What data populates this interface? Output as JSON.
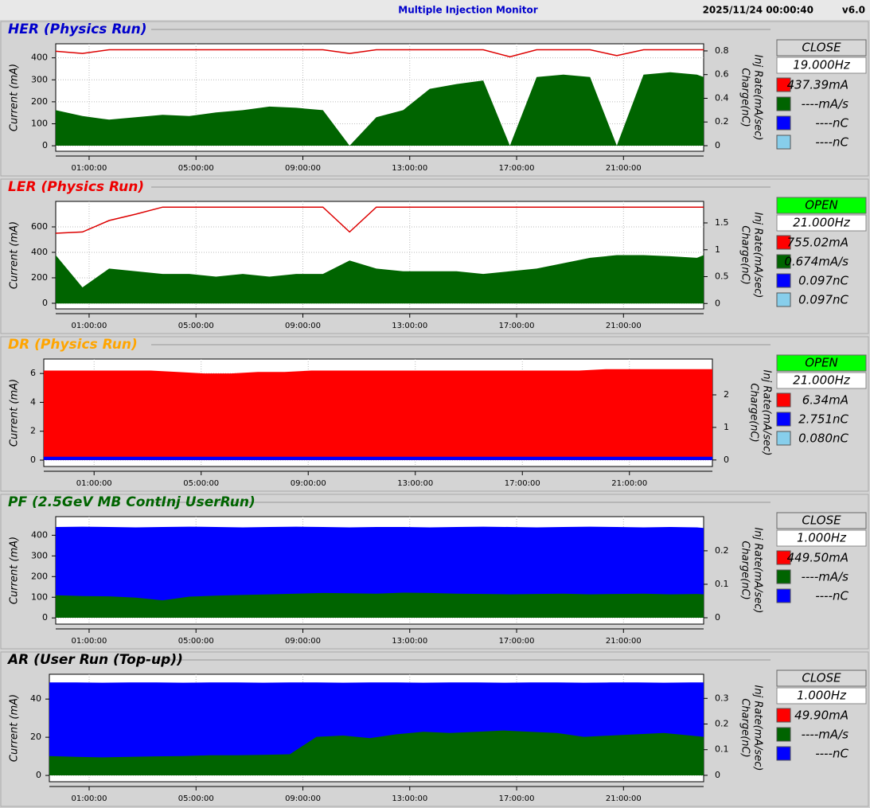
{
  "header": {
    "title": "Multiple Injection Monitor",
    "timestamp": "2025/11/24 00:00:40",
    "version": "v6.0"
  },
  "chart_data": [
    {
      "type": "area",
      "title": "HER",
      "subtitle": "(Physics Run)",
      "title_color": "#0000cc",
      "ylabel": "Current (mA)",
      "y2labels": [
        "Charge(nC)",
        "Inj Rate(mA/sec)"
      ],
      "xlim": [
        -0.25,
        24.0
      ],
      "xticks": [
        {
          "value": 1,
          "label": "01:00:00"
        },
        {
          "value": 5,
          "label": "05:00:00"
        },
        {
          "value": 9,
          "label": "09:00:00"
        },
        {
          "value": 13,
          "label": "13:00:00"
        },
        {
          "value": 17,
          "label": "17:00:00"
        },
        {
          "value": 21,
          "label": "21:00:00"
        }
      ],
      "ylim": [
        -25,
        464
      ],
      "yticks": [
        0,
        100,
        200,
        300,
        400
      ],
      "y2lim": [
        -0.047,
        0.86
      ],
      "y2ticks": [
        0,
        0.2,
        0.4,
        0.6,
        0.8
      ],
      "grid": true,
      "x": [
        -0.25,
        0.75,
        1.75,
        2.75,
        3.75,
        4.75,
        5.75,
        6.75,
        7.75,
        8.75,
        9.75,
        10.75,
        11.75,
        12.75,
        13.75,
        14.75,
        15.75,
        16.75,
        17.75,
        18.75,
        19.75,
        20.75,
        21.75,
        22.75,
        23.75,
        24.0
      ],
      "series": [
        {
          "style": "area",
          "color": "#006400",
          "axis": "y2",
          "values": [
            0.3,
            0.25,
            0.22,
            0.24,
            0.26,
            0.25,
            0.28,
            0.3,
            0.33,
            0.32,
            0.3,
            0.0,
            0.24,
            0.3,
            0.48,
            0.52,
            0.55,
            0.0,
            0.58,
            0.6,
            0.58,
            0.0,
            0.6,
            0.62,
            0.6,
            0.58
          ]
        },
        {
          "style": "line",
          "color": "#dd0000",
          "axis": "y",
          "values": [
            430,
            420,
            437,
            437,
            437,
            437,
            437,
            437,
            437,
            437,
            437,
            420,
            437,
            437,
            437,
            437,
            437,
            405,
            437,
            437,
            437,
            410,
            437,
            437,
            437,
            437
          ]
        }
      ],
      "status": "CLOSE",
      "status_color": "#d8d8d8",
      "rate": "19.000Hz",
      "readouts": [
        {
          "color": "#ff0000",
          "text": "437.39mA"
        },
        {
          "color": "#006400",
          "text": "----mA/s"
        },
        {
          "color": "#0000ff",
          "text": "----nC"
        },
        {
          "color": "#87ceeb",
          "text": "----nC"
        }
      ]
    },
    {
      "type": "area",
      "title": "LER",
      "subtitle": "(Physics Run)",
      "title_color": "#ee0000",
      "ylabel": "Current (mA)",
      "y2labels": [
        "Charge(nC)",
        "Inj Rate(mA/sec)"
      ],
      "xlim": [
        -0.25,
        24.0
      ],
      "xticks": [
        {
          "value": 1,
          "label": "01:00:00"
        },
        {
          "value": 5,
          "label": "05:00:00"
        },
        {
          "value": 9,
          "label": "09:00:00"
        },
        {
          "value": 13,
          "label": "13:00:00"
        },
        {
          "value": 17,
          "label": "17:00:00"
        },
        {
          "value": 21,
          "label": "21:00:00"
        }
      ],
      "ylim": [
        -44,
        800
      ],
      "yticks": [
        0,
        200,
        400,
        600
      ],
      "y2lim": [
        -0.1,
        1.9
      ],
      "y2ticks": [
        0,
        0.5,
        1,
        1.5
      ],
      "grid": true,
      "x": [
        -0.25,
        0.75,
        1.75,
        2.75,
        3.75,
        4.75,
        5.75,
        6.75,
        7.75,
        8.75,
        9.75,
        10.75,
        11.75,
        12.75,
        13.75,
        14.75,
        15.75,
        16.75,
        17.75,
        18.75,
        19.75,
        20.75,
        21.75,
        22.75,
        23.75,
        24.0
      ],
      "series": [
        {
          "style": "area",
          "color": "#006400",
          "axis": "y2",
          "values": [
            0.9,
            0.3,
            0.65,
            0.6,
            0.55,
            0.55,
            0.5,
            0.55,
            0.5,
            0.55,
            0.55,
            0.8,
            0.65,
            0.6,
            0.6,
            0.6,
            0.55,
            0.6,
            0.65,
            0.75,
            0.85,
            0.9,
            0.9,
            0.88,
            0.85,
            0.9
          ]
        },
        {
          "style": "line",
          "color": "#dd0000",
          "axis": "y",
          "values": [
            550,
            560,
            650,
            700,
            755,
            755,
            755,
            755,
            755,
            755,
            755,
            560,
            755,
            755,
            755,
            755,
            755,
            755,
            755,
            755,
            755,
            755,
            755,
            755,
            755,
            755
          ]
        }
      ],
      "status": "OPEN",
      "status_color": "#00ff00",
      "rate": "21.000Hz",
      "readouts": [
        {
          "color": "#ff0000",
          "text": "755.02mA"
        },
        {
          "color": "#006400",
          "text": "0.674mA/s"
        },
        {
          "color": "#0000ff",
          "text": "0.097nC"
        },
        {
          "color": "#87ceeb",
          "text": "0.097nC"
        }
      ]
    },
    {
      "type": "area",
      "title": "DR",
      "subtitle": "(Physics Run)",
      "title_color": "#ffa500",
      "ylabel": "Current (mA)",
      "y2labels": [
        "Charge(nC)",
        "Inj Rate(mA/sec)"
      ],
      "xlim": [
        -0.88,
        24.1
      ],
      "xticks": [
        {
          "value": 1,
          "label": "01:00:00"
        },
        {
          "value": 5,
          "label": "05:00:00"
        },
        {
          "value": 9,
          "label": "09:00:00"
        },
        {
          "value": 13,
          "label": "13:00:00"
        },
        {
          "value": 17,
          "label": "17:00:00"
        },
        {
          "value": 21,
          "label": "21:00:00"
        }
      ],
      "ylim": [
        -0.44,
        7
      ],
      "yticks": [
        0,
        2,
        4,
        6
      ],
      "y2lim": [
        -0.2,
        3.1
      ],
      "y2ticks": [
        0,
        1,
        2
      ],
      "grid": true,
      "x": [
        -0.88,
        0.12,
        1.12,
        2.12,
        3.12,
        4.12,
        5.12,
        6.12,
        7.12,
        8.12,
        9.12,
        10.12,
        11.12,
        12.12,
        13.12,
        14.12,
        15.12,
        16.12,
        17.12,
        18.12,
        19.12,
        20.12,
        21.12,
        22.12,
        23.12,
        24.1
      ],
      "series": [
        {
          "style": "area",
          "color": "#ff0000",
          "axis": "y",
          "values": [
            6.2,
            6.2,
            6.2,
            6.2,
            6.2,
            6.1,
            6.0,
            6.0,
            6.1,
            6.1,
            6.2,
            6.2,
            6.2,
            6.2,
            6.2,
            6.2,
            6.2,
            6.2,
            6.2,
            6.2,
            6.2,
            6.3,
            6.3,
            6.3,
            6.3,
            6.3
          ]
        },
        {
          "style": "area",
          "color": "#0000ff",
          "axis": "y2",
          "values": [
            0.1,
            0.1,
            0.1,
            0.1,
            0.1,
            0.1,
            0.1,
            0.1,
            0.1,
            0.1,
            0.1,
            0.1,
            0.1,
            0.1,
            0.1,
            0.1,
            0.1,
            0.1,
            0.1,
            0.1,
            0.1,
            0.1,
            0.1,
            0.1,
            0.1,
            0.1
          ]
        }
      ],
      "status": "OPEN",
      "status_color": "#00ff00",
      "rate": "21.000Hz",
      "readouts": [
        {
          "color": "#ff0000",
          "text": "6.34mA"
        },
        {
          "color": "#0000ff",
          "text": "2.751nC"
        },
        {
          "color": "#87ceeb",
          "text": "0.080nC"
        }
      ]
    },
    {
      "type": "area",
      "title": "PF",
      "subtitle": "(2.5GeV MB ContInj UserRun)",
      "title_color": "#006400",
      "ylabel": "Current (mA)",
      "y2labels": [
        "Charge(nC)",
        "Inj Rate(mA/sec)"
      ],
      "xlim": [
        -0.25,
        24.0
      ],
      "xticks": [
        {
          "value": 1,
          "label": "01:00:00"
        },
        {
          "value": 5,
          "label": "05:00:00"
        },
        {
          "value": 9,
          "label": "09:00:00"
        },
        {
          "value": 13,
          "label": "13:00:00"
        },
        {
          "value": 17,
          "label": "17:00:00"
        },
        {
          "value": 21,
          "label": "21:00:00"
        }
      ],
      "ylim": [
        -30,
        490
      ],
      "yticks": [
        0,
        100,
        200,
        300,
        400
      ],
      "y2lim": [
        -0.019,
        0.302
      ],
      "y2ticks": [
        0,
        0.1,
        0.2
      ],
      "grid": true,
      "x": [
        -0.25,
        0.75,
        1.75,
        2.75,
        3.75,
        4.75,
        5.75,
        6.75,
        7.75,
        8.75,
        9.75,
        10.75,
        11.75,
        12.75,
        13.75,
        14.75,
        15.75,
        16.75,
        17.75,
        18.75,
        19.75,
        20.75,
        21.75,
        22.75,
        23.75,
        24.0
      ],
      "series": [
        {
          "style": "area",
          "color": "#0000ff",
          "axis": "y2",
          "values": [
            0.271,
            0.272,
            0.271,
            0.27,
            0.271,
            0.272,
            0.271,
            0.27,
            0.271,
            0.272,
            0.271,
            0.27,
            0.271,
            0.271,
            0.27,
            0.271,
            0.272,
            0.271,
            0.27,
            0.271,
            0.272,
            0.271,
            0.27,
            0.271,
            0.27,
            0.268
          ]
        },
        {
          "style": "area",
          "color": "#006400",
          "axis": "y2",
          "values": [
            0.067,
            0.065,
            0.064,
            0.06,
            0.052,
            0.063,
            0.066,
            0.068,
            0.07,
            0.072,
            0.074,
            0.073,
            0.072,
            0.075,
            0.074,
            0.072,
            0.071,
            0.07,
            0.071,
            0.072,
            0.07,
            0.071,
            0.072,
            0.07,
            0.071,
            0.07
          ]
        }
      ],
      "status": "CLOSE",
      "status_color": "#d8d8d8",
      "rate": "1.000Hz",
      "readouts": [
        {
          "color": "#ff0000",
          "text": "449.50mA"
        },
        {
          "color": "#006400",
          "text": "----mA/s"
        },
        {
          "color": "#0000ff",
          "text": "----nC"
        }
      ]
    },
    {
      "type": "area",
      "title": "AR",
      "subtitle": "(User Run (Top-up))",
      "title_color": "#000000",
      "ylabel": "Current (mA)",
      "y2labels": [
        "Charge(nC)",
        "Inj Rate(mA/sec)"
      ],
      "xlim": [
        -0.49,
        24.0
      ],
      "xticks": [
        {
          "value": 1,
          "label": "01:00:00"
        },
        {
          "value": 5,
          "label": "05:00:00"
        },
        {
          "value": 9,
          "label": "09:00:00"
        },
        {
          "value": 13,
          "label": "13:00:00"
        },
        {
          "value": 17,
          "label": "17:00:00"
        },
        {
          "value": 21,
          "label": "21:00:00"
        }
      ],
      "ylim": [
        -3.3,
        53
      ],
      "yticks": [
        0,
        20,
        40
      ],
      "y2lim": [
        -0.025,
        0.394
      ],
      "y2ticks": [
        0,
        0.1,
        0.2,
        0.3
      ],
      "grid": true,
      "x": [
        -0.49,
        0.51,
        1.51,
        2.51,
        3.51,
        4.51,
        5.51,
        6.51,
        7.51,
        8.51,
        9.51,
        10.51,
        11.51,
        12.51,
        13.51,
        14.51,
        15.51,
        16.51,
        17.51,
        18.51,
        19.51,
        20.51,
        21.51,
        22.51,
        23.51,
        24.0
      ],
      "series": [
        {
          "style": "area",
          "color": "#0000ff",
          "axis": "y2",
          "values": [
            0.362,
            0.362,
            0.361,
            0.362,
            0.362,
            0.361,
            0.362,
            0.362,
            0.361,
            0.362,
            0.362,
            0.361,
            0.362,
            0.362,
            0.361,
            0.362,
            0.362,
            0.361,
            0.362,
            0.362,
            0.361,
            0.362,
            0.362,
            0.361,
            0.362,
            0.362
          ]
        },
        {
          "style": "area",
          "color": "#006400",
          "axis": "y2",
          "values": [
            0.075,
            0.072,
            0.07,
            0.072,
            0.074,
            0.075,
            0.078,
            0.078,
            0.08,
            0.082,
            0.15,
            0.155,
            0.145,
            0.16,
            0.17,
            0.165,
            0.17,
            0.175,
            0.17,
            0.165,
            0.15,
            0.155,
            0.16,
            0.165,
            0.155,
            0.15
          ]
        }
      ],
      "status": "CLOSE",
      "status_color": "#d8d8d8",
      "rate": "1.000Hz",
      "readouts": [
        {
          "color": "#ff0000",
          "text": "49.90mA"
        },
        {
          "color": "#006400",
          "text": "----mA/s"
        },
        {
          "color": "#0000ff",
          "text": "----nC"
        }
      ]
    }
  ]
}
